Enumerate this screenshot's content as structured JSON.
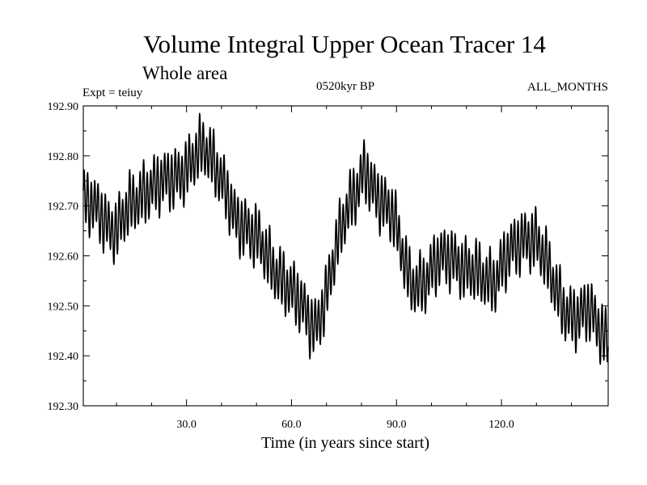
{
  "chart_data": {
    "type": "line",
    "title": "Volume Integral Upper Ocean Tracer 14",
    "subtitle": "Whole area",
    "experiment": "Expt = teiuy",
    "period": "0520kyr BP",
    "months": "ALL_MONTHS",
    "xlabel": "Time (in years since start)",
    "ylabel": "",
    "xlim": [
      0.5,
      150.5
    ],
    "ylim": [
      192.3,
      192.9
    ],
    "x_major_ticks": [
      30.0,
      60.0,
      90.0,
      120.0
    ],
    "x_minor_ticks": [
      10,
      20,
      40,
      50,
      70,
      80,
      100,
      110,
      130,
      140
    ],
    "y_ticks": [
      192.3,
      192.4,
      192.5,
      192.6,
      192.7,
      192.8,
      192.9
    ],
    "x_tick_labels": [
      "30.0",
      "60.0",
      "90.0",
      "120.0"
    ],
    "y_tick_labels": [
      "192.30",
      "192.40",
      "192.50",
      "192.60",
      "192.70",
      "192.80",
      "192.90"
    ],
    "series": [
      {
        "name": "Volume Integral Upper Ocean Tracer 14",
        "sampling": "monthly (seasonal cycle ≈ ±0.05)",
        "x": [
          0.5,
          5,
          8,
          10,
          14,
          18,
          22,
          26,
          30,
          33,
          35,
          38,
          41,
          44,
          47,
          50,
          54,
          58,
          62,
          65,
          67,
          70,
          73,
          76,
          79,
          81,
          83,
          86,
          89,
          91,
          94,
          98,
          102,
          106,
          110,
          114,
          118,
          121,
          124,
          127,
          130,
          133,
          136,
          139,
          142,
          145,
          148,
          150.5
        ],
        "mean": [
          192.71,
          192.69,
          192.66,
          192.65,
          192.7,
          192.73,
          192.74,
          192.76,
          192.77,
          192.8,
          192.82,
          192.79,
          192.73,
          192.67,
          192.66,
          192.64,
          192.58,
          192.55,
          192.51,
          192.47,
          192.46,
          192.52,
          192.62,
          192.7,
          192.74,
          192.77,
          192.73,
          192.71,
          192.69,
          192.62,
          192.54,
          192.55,
          192.59,
          192.6,
          192.57,
          192.56,
          192.55,
          192.59,
          192.62,
          192.64,
          192.63,
          192.58,
          192.53,
          192.48,
          192.47,
          192.5,
          192.46,
          192.42
        ],
        "amplitude": 0.05
      }
    ]
  }
}
